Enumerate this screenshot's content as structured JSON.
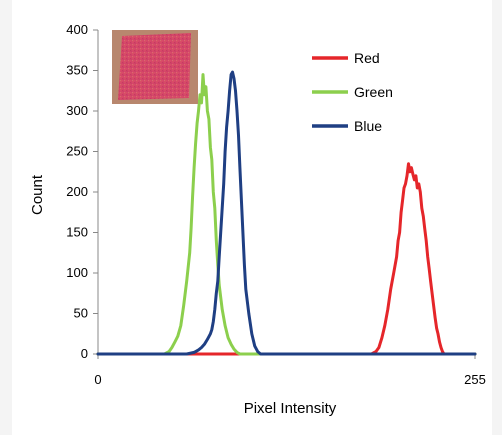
{
  "chart_data": {
    "type": "line",
    "title": "",
    "xlabel": "Pixel Intensity",
    "ylabel": "Count",
    "xlim": [
      0,
      255
    ],
    "ylim": [
      0,
      400
    ],
    "x_ticks": [
      "0",
      "255"
    ],
    "y_ticks": [
      "0",
      "50",
      "100",
      "150",
      "200",
      "250",
      "300",
      "350",
      "400"
    ],
    "grid": false,
    "legend_position": "top-right",
    "inset_image": "red-square-sample",
    "series": [
      {
        "name": "Red",
        "color": "#e5262a",
        "points": [
          [
            0,
            0
          ],
          [
            60,
            0
          ],
          [
            90,
            0
          ],
          [
            100,
            0
          ],
          [
            150,
            0
          ],
          [
            180,
            0
          ],
          [
            185,
            0
          ],
          [
            188,
            3
          ],
          [
            190,
            8
          ],
          [
            192,
            20
          ],
          [
            194,
            35
          ],
          [
            196,
            55
          ],
          [
            198,
            80
          ],
          [
            200,
            100
          ],
          [
            202,
            120
          ],
          [
            203,
            140
          ],
          [
            204,
            150
          ],
          [
            205,
            175
          ],
          [
            206,
            190
          ],
          [
            207,
            205
          ],
          [
            208,
            210
          ],
          [
            209,
            220
          ],
          [
            210,
            235
          ],
          [
            211,
            225
          ],
          [
            212,
            230
          ],
          [
            213,
            222
          ],
          [
            214,
            215
          ],
          [
            215,
            220
          ],
          [
            216,
            205
          ],
          [
            217,
            210
          ],
          [
            218,
            200
          ],
          [
            219,
            180
          ],
          [
            220,
            170
          ],
          [
            221,
            155
          ],
          [
            222,
            140
          ],
          [
            223,
            120
          ],
          [
            224,
            105
          ],
          [
            225,
            90
          ],
          [
            226,
            75
          ],
          [
            227,
            60
          ],
          [
            228,
            45
          ],
          [
            229,
            32
          ],
          [
            230,
            25
          ],
          [
            231,
            15
          ],
          [
            232,
            8
          ],
          [
            233,
            3
          ],
          [
            234,
            0
          ],
          [
            240,
            0
          ],
          [
            255,
            0
          ]
        ]
      },
      {
        "name": "Green",
        "color": "#8ccf4d",
        "points": [
          [
            0,
            0
          ],
          [
            45,
            0
          ],
          [
            48,
            3
          ],
          [
            50,
            8
          ],
          [
            52,
            15
          ],
          [
            54,
            22
          ],
          [
            56,
            35
          ],
          [
            58,
            60
          ],
          [
            60,
            90
          ],
          [
            62,
            125
          ],
          [
            63,
            155
          ],
          [
            64,
            195
          ],
          [
            65,
            230
          ],
          [
            66,
            260
          ],
          [
            67,
            285
          ],
          [
            68,
            300
          ],
          [
            69,
            320
          ],
          [
            70,
            310
          ],
          [
            71,
            345
          ],
          [
            72,
            320
          ],
          [
            73,
            330
          ],
          [
            74,
            300
          ],
          [
            75,
            290
          ],
          [
            76,
            255
          ],
          [
            77,
            240
          ],
          [
            78,
            200
          ],
          [
            79,
            180
          ],
          [
            80,
            140
          ],
          [
            81,
            110
          ],
          [
            82,
            85
          ],
          [
            84,
            55
          ],
          [
            86,
            35
          ],
          [
            88,
            20
          ],
          [
            90,
            12
          ],
          [
            92,
            6
          ],
          [
            94,
            2
          ],
          [
            96,
            0
          ],
          [
            100,
            0
          ],
          [
            255,
            0
          ]
        ]
      },
      {
        "name": "Blue",
        "color": "#1f3f83",
        "points": [
          [
            0,
            0
          ],
          [
            60,
            0
          ],
          [
            65,
            2
          ],
          [
            68,
            5
          ],
          [
            70,
            8
          ],
          [
            72,
            12
          ],
          [
            74,
            18
          ],
          [
            76,
            25
          ],
          [
            77,
            30
          ],
          [
            78,
            40
          ],
          [
            79,
            55
          ],
          [
            80,
            75
          ],
          [
            81,
            90
          ],
          [
            82,
            120
          ],
          [
            83,
            150
          ],
          [
            84,
            180
          ],
          [
            85,
            210
          ],
          [
            86,
            250
          ],
          [
            87,
            280
          ],
          [
            88,
            300
          ],
          [
            89,
            325
          ],
          [
            90,
            345
          ],
          [
            91,
            348
          ],
          [
            92,
            340
          ],
          [
            93,
            325
          ],
          [
            94,
            300
          ],
          [
            95,
            270
          ],
          [
            96,
            230
          ],
          [
            97,
            190
          ],
          [
            98,
            150
          ],
          [
            99,
            110
          ],
          [
            100,
            80
          ],
          [
            102,
            50
          ],
          [
            104,
            25
          ],
          [
            106,
            10
          ],
          [
            108,
            3
          ],
          [
            110,
            0
          ],
          [
            255,
            0
          ]
        ]
      }
    ]
  }
}
